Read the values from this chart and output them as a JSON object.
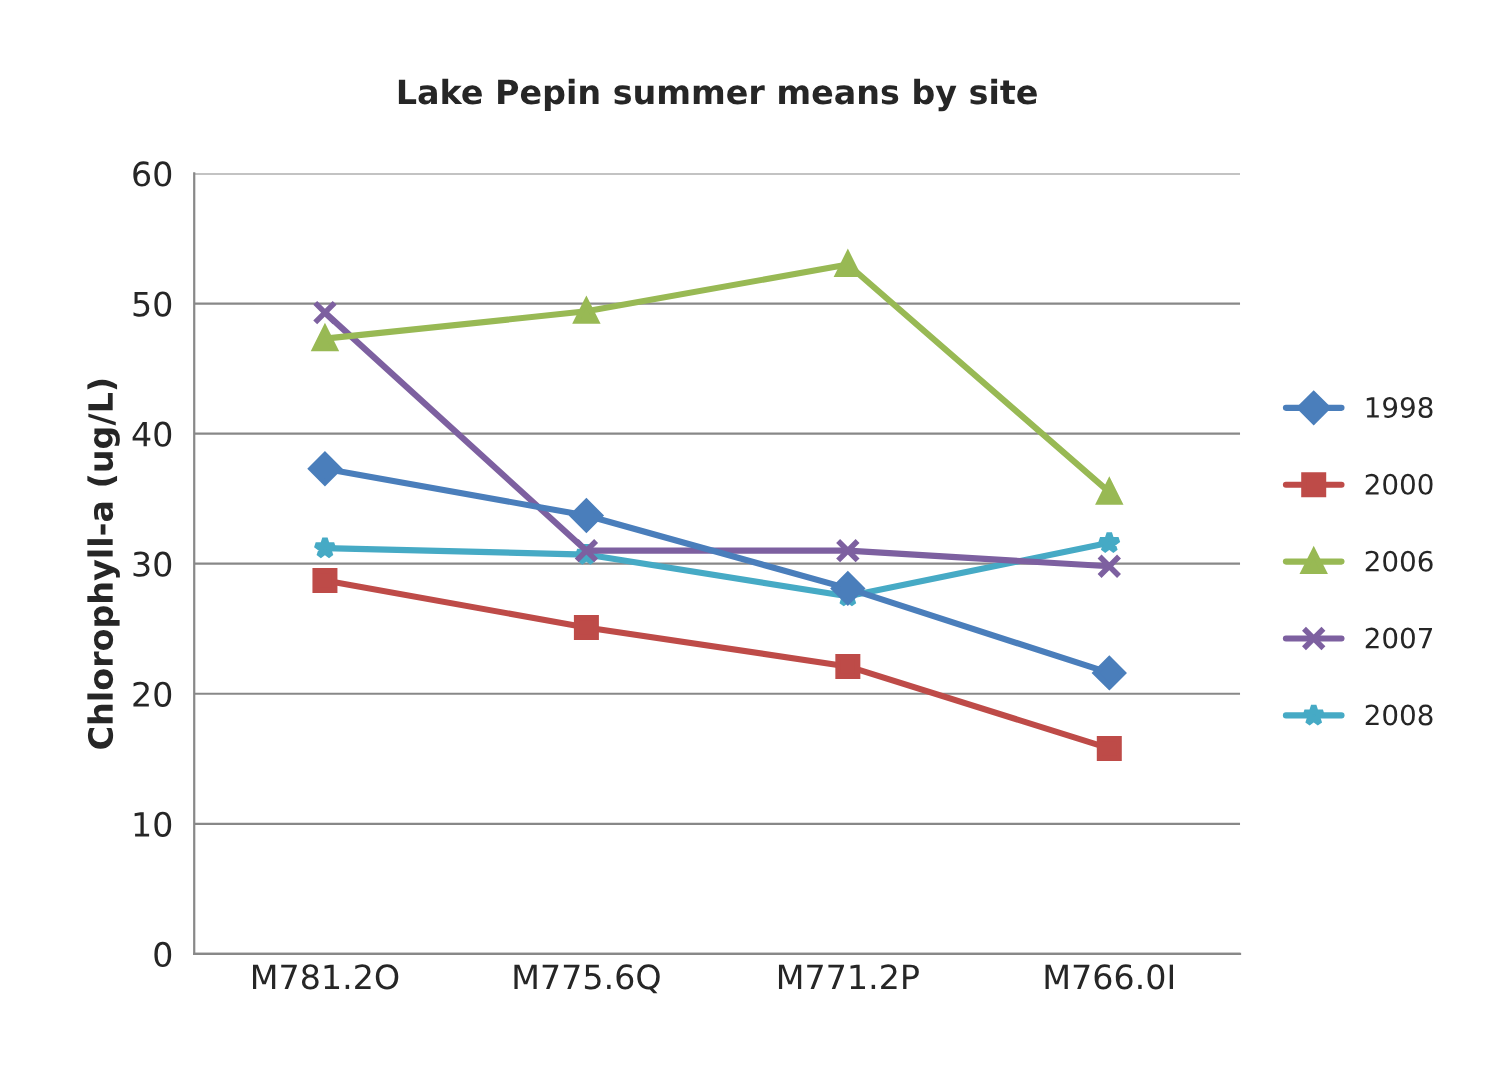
{
  "chart_data": {
    "type": "line",
    "title": "Lake Pepin summer means by site",
    "ylabel": "Chlorophyll-a (ug/L)",
    "categories": [
      "M781.2O",
      "M775.6Q",
      "M771.2P",
      "M766.0I"
    ],
    "series": [
      {
        "name": "1998",
        "color": "#4a7ebb",
        "marker": "diamond",
        "values": [
          37.3,
          33.7,
          28.1,
          21.6
        ]
      },
      {
        "name": "2000",
        "color": "#be4b48",
        "marker": "square",
        "values": [
          28.7,
          25.1,
          22.1,
          15.8
        ]
      },
      {
        "name": "2006",
        "color": "#98b954",
        "marker": "triangle",
        "values": [
          47.3,
          49.4,
          53.0,
          35.5
        ]
      },
      {
        "name": "2007",
        "color": "#7d60a0",
        "marker": "cross",
        "values": [
          49.3,
          31.0,
          31.0,
          29.8
        ]
      },
      {
        "name": "2008",
        "color": "#46aac5",
        "marker": "star",
        "values": [
          31.2,
          30.7,
          27.5,
          31.6
        ]
      }
    ],
    "ylim": [
      0,
      60
    ],
    "yticks": [
      0,
      10,
      20,
      30,
      40,
      50,
      60
    ],
    "grid": "y",
    "legend": "right"
  }
}
